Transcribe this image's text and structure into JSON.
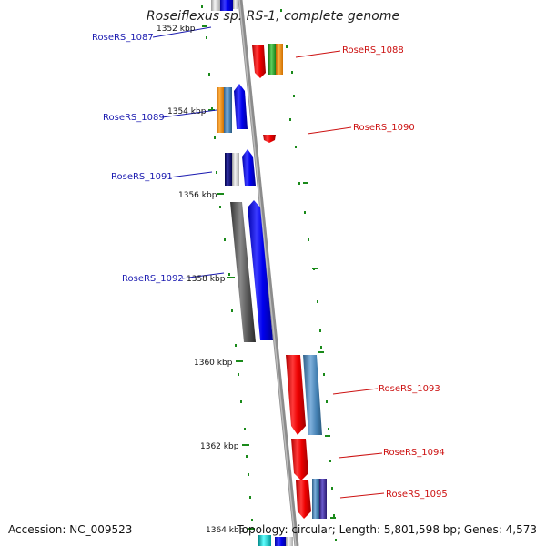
{
  "title": "Roseiflexus sp. RS-1, complete genome",
  "footer": {
    "accession": "Accession: NC_009523",
    "topology": "Topology: circular; Length: 5,801,598 bp; Genes: 4,573"
  },
  "kbp_ticks": [
    "1352 kbp",
    "1354 kbp",
    "1356 kbp",
    "1358 kbp",
    "1360 kbp",
    "1362 kbp",
    "1364 kbp"
  ],
  "gene_labels": [
    {
      "name": "RoseRS_1087",
      "color": "#1a1ab0"
    },
    {
      "name": "RoseRS_1088",
      "color": "#cc1111"
    },
    {
      "name": "RoseRS_1089",
      "color": "#1a1ab0"
    },
    {
      "name": "RoseRS_1090",
      "color": "#cc1111"
    },
    {
      "name": "RoseRS_1091",
      "color": "#1a1ab0"
    },
    {
      "name": "RoseRS_1092",
      "color": "#1a1ab0"
    },
    {
      "name": "RoseRS_1093",
      "color": "#cc1111"
    },
    {
      "name": "RoseRS_1094",
      "color": "#cc1111"
    },
    {
      "name": "RoseRS_1095",
      "color": "#cc1111"
    }
  ],
  "colors": {
    "backbone": "#888888",
    "gc_dots": "#1a8a1a",
    "forward": "#0000ee",
    "reverse_red": "#ee0000",
    "steel_blue": "#4682b4",
    "dark_grey": "#555555",
    "orange": "#ff8c00",
    "green": "#22aa22",
    "navy": "#000080",
    "cyan": "#00cccc"
  }
}
